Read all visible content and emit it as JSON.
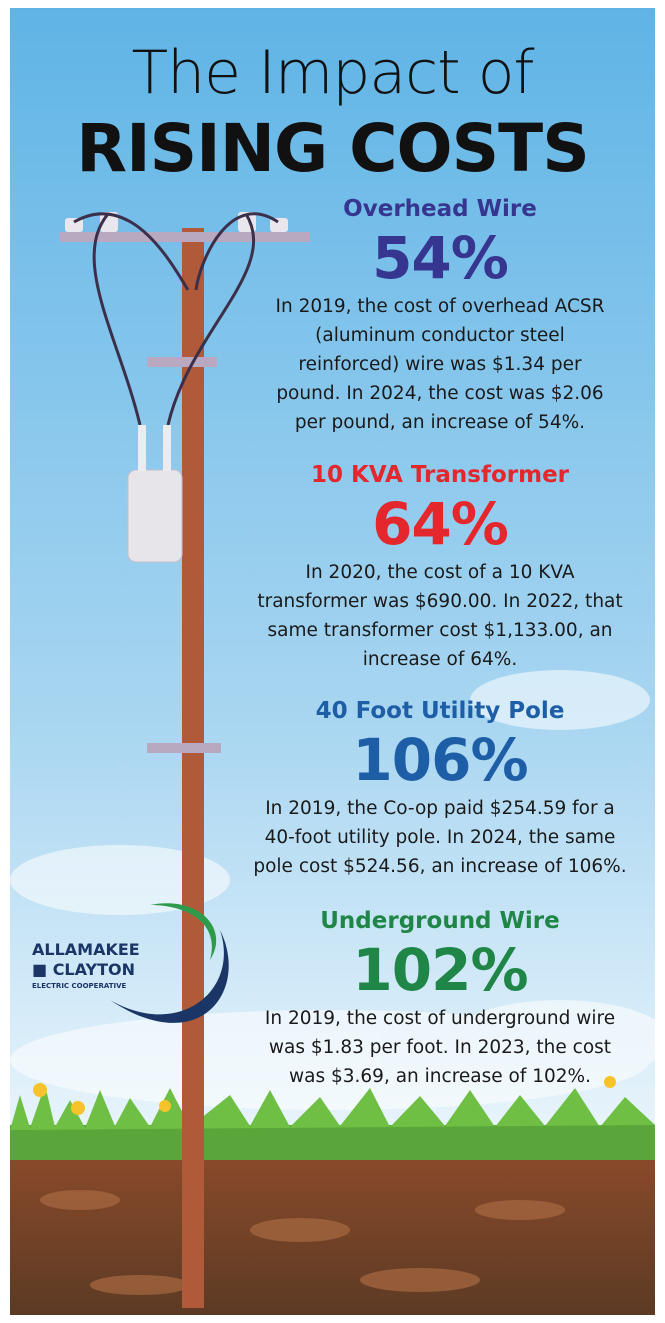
{
  "header": {
    "title_line1": "The Impact of",
    "title_line2": "RISING COSTS"
  },
  "items": [
    {
      "heading": "Overhead Wire",
      "percent": "54%",
      "color": "#36358f",
      "body": [
        "In 2019, the cost of overhead ACSR",
        "(aluminum conductor steel",
        "reinforced) wire was $1.34 per",
        "pound. In 2024, the cost was $2.06",
        "per pound, an increase of 54%."
      ]
    },
    {
      "heading": "10 KVA Transformer",
      "percent": "64%",
      "color": "#e4262d",
      "body": [
        "In 2020, the cost of a 10 KVA",
        "transformer was $690.00. In 2022, that",
        "same transformer cost $1,133.00, an",
        "increase of 64%."
      ]
    },
    {
      "heading": "40 Foot Utility Pole",
      "percent": "106%",
      "color": "#1d5ea6",
      "body": [
        "In 2019, the Co-op paid $254.59 for a",
        "40-foot utility pole. In 2024, the same",
        "pole cost $524.56, an increase of 106%."
      ]
    },
    {
      "heading": "Underground Wire",
      "percent": "102%",
      "color": "#1f8648",
      "body": [
        "In 2019, the cost of underground wire",
        "was $1.83 per foot. In 2023, the cost",
        "was $3.69, an increase of 102%."
      ]
    }
  ],
  "logo": {
    "line1": "ALLAMAKEE",
    "line2": "■ CLAYTON",
    "line3": "ELECTRIC COOPERATIVE"
  }
}
